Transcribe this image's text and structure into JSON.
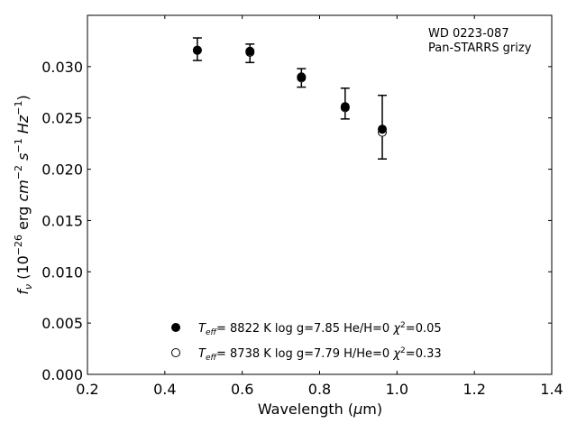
{
  "chart_data": {
    "type": "scatter",
    "annotation_lines": [
      "WD 0223-087",
      "Pan-STARRS grizy"
    ],
    "xlabel": "Wavelength (μm)",
    "ylabel": "fν (10⁻²⁶ erg cm⁻² s⁻¹ Hz⁻¹)",
    "xlim": [
      0.2,
      1.4
    ],
    "ylim": [
      0.0,
      0.035
    ],
    "xticks": [
      "0.2",
      "0.4",
      "0.6",
      "0.8",
      "1.0",
      "1.2",
      "1.4"
    ],
    "yticks": [
      "0.000",
      "0.005",
      "0.010",
      "0.015",
      "0.020",
      "0.025",
      "0.030"
    ],
    "legend_placement": "lower-center",
    "observed": {
      "x": [
        0.484,
        0.62,
        0.753,
        0.866,
        0.962
      ],
      "y": [
        0.0317,
        0.0313,
        0.0289,
        0.0264,
        0.0241
      ],
      "yerr": [
        0.0011,
        0.0009,
        0.0009,
        0.0015,
        0.0031
      ]
    },
    "series": [
      {
        "legend": "T_eff=  8822 K  log g=7.85  He/H=0  χ²=0.05",
        "legend_parts": {
          "t": "8822 K",
          "logg": "7.85",
          "comp": "He/H=0",
          "chi": "0.05"
        },
        "marker": "filled-circle",
        "x": [
          0.484,
          0.62,
          0.753,
          0.866,
          0.962
        ],
        "y": [
          0.0316,
          0.0315,
          0.029,
          0.0261,
          0.0239
        ]
      },
      {
        "legend": "T_eff=  8738 K  log g=7.79  H/He=0  χ²=0.33",
        "legend_parts": {
          "t": "8738 K",
          "logg": "7.79",
          "comp": "H/He=0",
          "chi": "0.33"
        },
        "marker": "open-circle",
        "x": [
          0.484,
          0.62,
          0.753,
          0.866,
          0.962
        ],
        "y": [
          0.0316,
          0.0314,
          0.0289,
          0.026,
          0.0236
        ]
      }
    ]
  }
}
